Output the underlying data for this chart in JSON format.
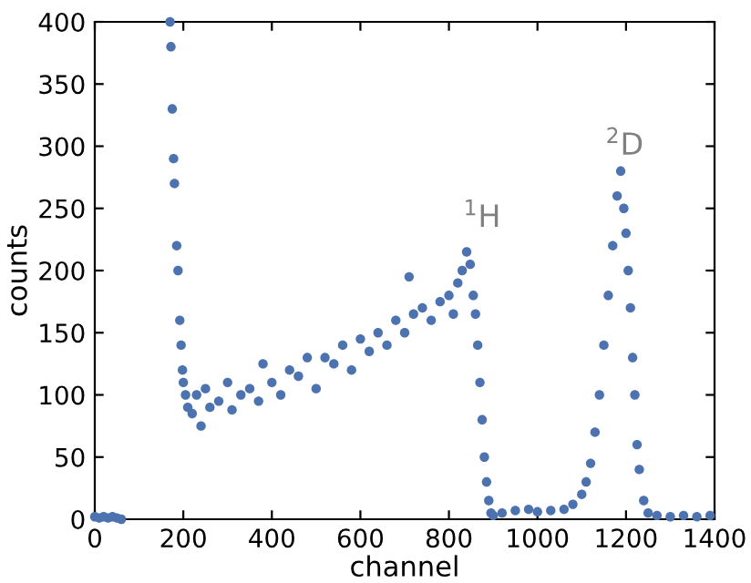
{
  "chart_data": {
    "type": "scatter",
    "xlabel": "channel",
    "ylabel": "counts",
    "xlim": [
      0,
      1400
    ],
    "ylim": [
      0,
      400
    ],
    "xticks": [
      0,
      200,
      400,
      600,
      800,
      1000,
      1200,
      1400
    ],
    "yticks": [
      0,
      50,
      100,
      150,
      200,
      250,
      300,
      350,
      400
    ],
    "grid": false,
    "legend": false,
    "marker": "circle",
    "x": [
      0,
      10,
      20,
      30,
      40,
      50,
      60,
      170,
      172,
      175,
      178,
      180,
      185,
      188,
      192,
      195,
      198,
      200,
      205,
      210,
      220,
      230,
      240,
      250,
      260,
      280,
      300,
      310,
      330,
      350,
      370,
      380,
      400,
      420,
      440,
      460,
      480,
      500,
      520,
      540,
      560,
      580,
      600,
      620,
      640,
      660,
      680,
      700,
      710,
      720,
      740,
      760,
      780,
      800,
      810,
      820,
      830,
      840,
      848,
      855,
      860,
      865,
      870,
      875,
      880,
      885,
      890,
      895,
      900,
      920,
      950,
      980,
      1000,
      1030,
      1060,
      1080,
      1100,
      1110,
      1120,
      1130,
      1140,
      1150,
      1160,
      1170,
      1180,
      1188,
      1195,
      1200,
      1205,
      1210,
      1215,
      1220,
      1225,
      1230,
      1240,
      1250,
      1270,
      1300,
      1330,
      1360,
      1390
    ],
    "series": [
      {
        "color": "#4c72b0",
        "values": [
          2,
          1,
          2,
          1,
          2,
          1,
          0,
          400,
          380,
          330,
          290,
          270,
          220,
          200,
          160,
          140,
          120,
          110,
          100,
          90,
          85,
          100,
          75,
          105,
          90,
          95,
          110,
          88,
          100,
          105,
          95,
          125,
          110,
          100,
          120,
          115,
          130,
          105,
          130,
          125,
          140,
          120,
          145,
          135,
          150,
          140,
          160,
          150,
          195,
          165,
          170,
          160,
          175,
          180,
          165,
          190,
          200,
          215,
          205,
          180,
          165,
          140,
          110,
          80,
          50,
          30,
          15,
          5,
          3,
          5,
          7,
          8,
          6,
          7,
          8,
          12,
          20,
          30,
          45,
          70,
          100,
          140,
          180,
          220,
          260,
          280,
          250,
          230,
          200,
          170,
          130,
          100,
          60,
          40,
          15,
          5,
          3,
          2,
          3,
          2,
          3
        ]
      }
    ],
    "annotations": [
      "$^{1}$H",
      "$^{2}$D"
    ]
  }
}
